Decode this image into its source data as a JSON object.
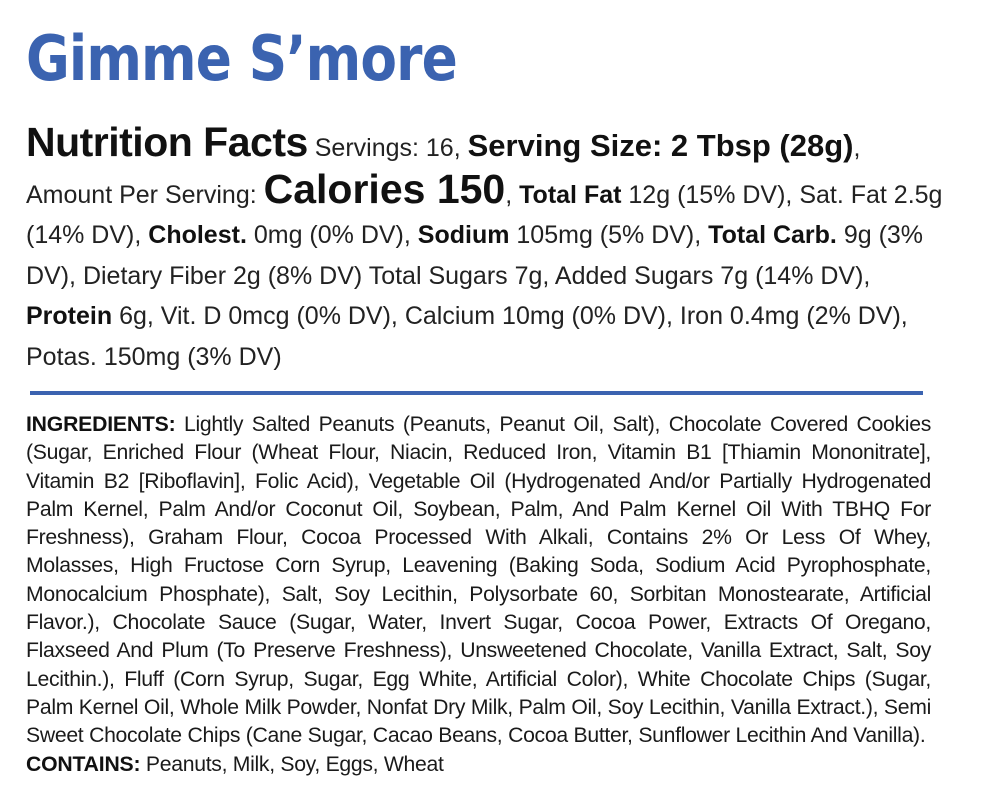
{
  "product": {
    "name": "Gimme S’more"
  },
  "nutrition": {
    "heading": "Nutrition Facts",
    "servings_label": "Servings: 16,",
    "serving_size": "Serving Size: 2 Tbsp (28g)",
    "serving_size_sep": ",",
    "amount_per_serving": "Amount Per Serving:",
    "calories": "Calories 150",
    "calories_sep": ",",
    "total_fat_label": "Total Fat",
    "total_fat_value": "12g (15% DV), Sat. Fat 2.5g (14% DV),",
    "cholest_label": "Cholest.",
    "cholest_value": "0mg (0% DV),",
    "sodium_label": "Sodium",
    "sodium_value": "105mg (5% DV),",
    "total_carb_label": "Total Carb.",
    "total_carb_value": "9g (3% DV), Dietary Fiber 2g (8% DV) Total Sugars 7g, Added Sugars 7g (14% DV),",
    "protein_label": "Protein",
    "protein_value": "6g, Vit. D 0mcg (0% DV), Calcium 10mg (0% DV), Iron 0.4mg (2% DV),  Potas. 150mg (3% DV)"
  },
  "ingredients": {
    "label": "INGREDIENTS:",
    "text": "Lightly Salted Peanuts (Peanuts, Peanut Oil, Salt), Chocolate Covered Cookies (Sugar, Enriched Flour (Wheat Flour, Niacin, Reduced Iron, Vitamin B1 [Thiamin Mononitrate], Vitamin B2 [Riboflavin], Folic Acid), Vegetable Oil (Hydrogenated And/or Partially Hydrogenated Palm Kernel, Palm And/or Coconut Oil, Soybean, Palm, And Palm Kernel Oil With TBHQ For Freshness), Graham Flour, Cocoa Processed With Alkali, Contains 2% Or Less Of Whey, Molasses, High Fructose Corn Syrup, Leavening (Baking Soda, Sodium Acid Pyrophosphate, Monocalcium Phosphate), Salt, Soy Lecithin, Polysorbate 60, Sorbitan Monostearate, Artificial Flavor.), Chocolate Sauce (Sugar, Water, Invert Sugar, Cocoa Power, Extracts Of Oregano, Flaxseed And Plum (To Preserve Freshness), Unsweetened Chocolate, Vanilla Extract, Salt, Soy Lecithin.), Fluff (Corn Syrup, Sugar, Egg White, Artificial Color), White Chocolate Chips (Sugar, Palm Kernel Oil, Whole Milk Powder, Nonfat Dry Milk, Palm Oil, Soy Lecithin, Vanilla Extract.), Semi Sweet Chocolate Chips (Cane Sugar, Cacao Beans, Cocoa Butter, Sunflower Lecithin And Vanilla).",
    "contains_label": "CONTAINS:",
    "contains_text": "Peanuts, Milk, Soy, Eggs, Wheat"
  },
  "colors": {
    "title_blue": "#3b63b0",
    "divider_blue": "#3b63b0",
    "text": "#1a1a1a"
  }
}
